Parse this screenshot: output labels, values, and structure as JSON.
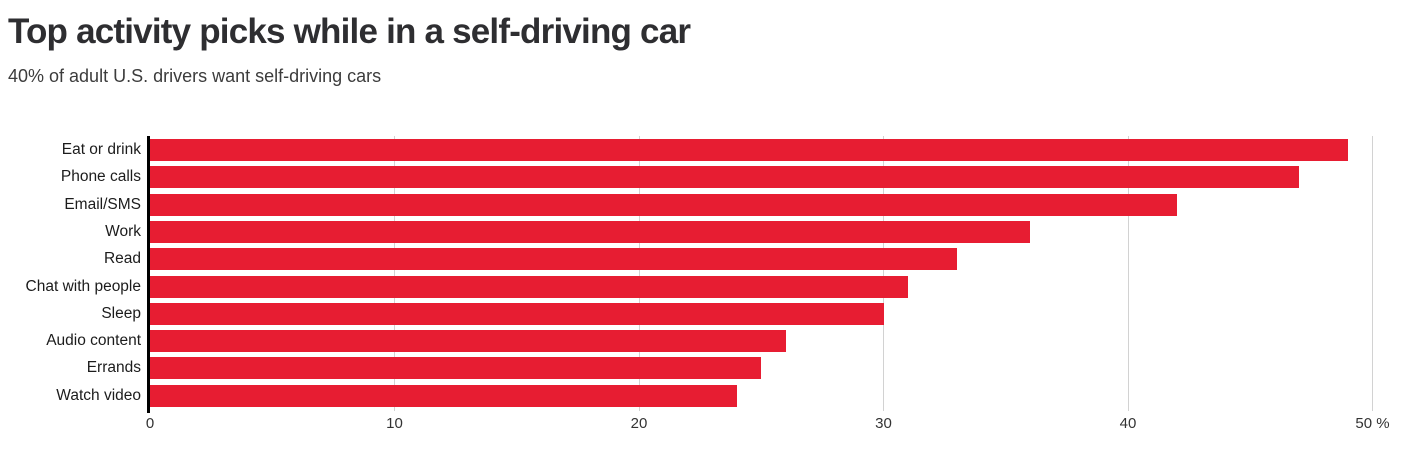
{
  "header": {
    "title": "Top activity picks while in a self-driving car",
    "subtitle": "40% of adult U.S. drivers want self-driving cars"
  },
  "chart_data": {
    "type": "bar",
    "orientation": "horizontal",
    "title": "Top activity picks while in a self-driving car",
    "subtitle": "40% of adult U.S. drivers want self-driving cars",
    "categories": [
      "Eat or drink",
      "Phone calls",
      "Email/SMS",
      "Work",
      "Read",
      "Chat with people",
      "Sleep",
      "Audio content",
      "Errands",
      "Watch video"
    ],
    "values": [
      49,
      47,
      42,
      36,
      33,
      31,
      30,
      26,
      25,
      24
    ],
    "unit": "%",
    "xlabel": "",
    "ylabel": "",
    "xlim": [
      0,
      50
    ],
    "x_ticks": [
      0,
      10,
      20,
      30,
      40,
      50
    ],
    "x_tick_labels": [
      "0",
      "10",
      "20",
      "30",
      "40",
      "50 %"
    ],
    "grid": true,
    "legend": "none",
    "colors": {
      "bar": "#e71d32",
      "axis_line": "#000000",
      "gridline": "#d2d2d2",
      "title_text": "#2e2e31",
      "subtitle_text": "#3c3c3c",
      "label_text": "#1c1c1c",
      "tick_text": "#333333",
      "background": "#ffffff"
    }
  }
}
